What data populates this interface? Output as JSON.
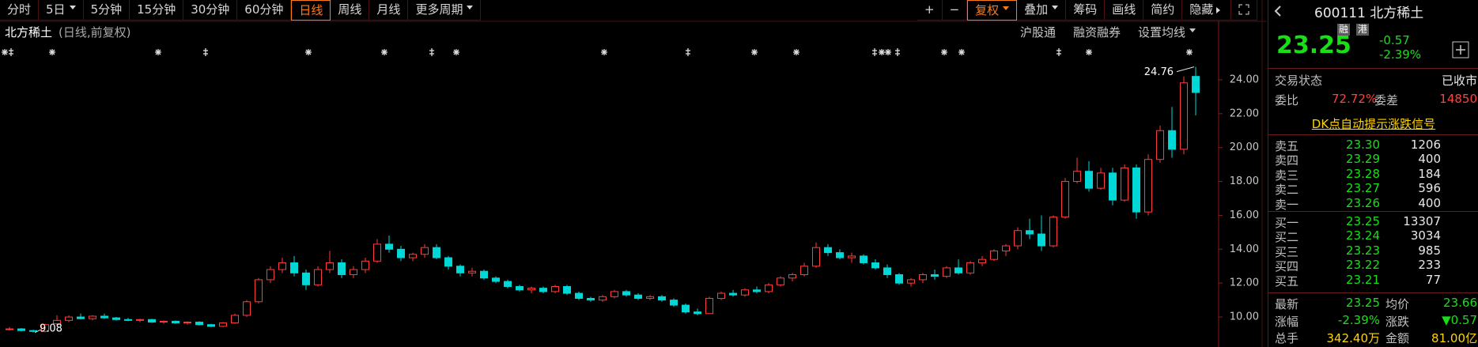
{
  "toolbar": {
    "periods": [
      "分时",
      "5日",
      "5分钟",
      "15分钟",
      "30分钟",
      "60分钟",
      "日线",
      "周线",
      "月线",
      "更多周期"
    ],
    "dropdown_periods": [
      "5日",
      "更多周期"
    ],
    "active": "日线",
    "tools": [
      "+",
      "−",
      "复权",
      "叠加",
      "筹码",
      "画线",
      "简约",
      "隐藏"
    ],
    "dropdown_tools": [
      "复权",
      "叠加"
    ],
    "active_tool": "复权"
  },
  "header": {
    "name": "北方稀土",
    "mode": "(日线,前复权)",
    "links": [
      "沪股通",
      "融资融券",
      "设置均线"
    ]
  },
  "chart_data": {
    "type": "candlestick",
    "up_color": "#ff3c3c",
    "down_color": "#00d7d7",
    "grid": false,
    "ylim": [
      8.23,
      27.03
    ],
    "yticks": [
      {
        "value": 10,
        "label": "10.00"
      },
      {
        "value": 12,
        "label": "12.00"
      },
      {
        "value": 14,
        "label": "14.00"
      },
      {
        "value": 16,
        "label": "16.00"
      },
      {
        "value": 18,
        "label": "18.00"
      },
      {
        "value": 20,
        "label": "20.00"
      },
      {
        "value": 22,
        "label": "22.00"
      },
      {
        "value": 24,
        "label": "24.00"
      }
    ],
    "open": [
      9.3,
      9.3,
      9.2,
      9.15,
      9.6,
      9.8,
      10.0,
      9.9,
      10.05,
      9.95,
      9.85,
      9.8,
      9.85,
      9.7,
      9.75,
      9.65,
      9.7,
      9.55,
      9.45,
      9.65,
      10.1,
      10.9,
      12.2,
      12.8,
      13.2,
      12.6,
      11.9,
      12.8,
      13.2,
      12.5,
      12.8,
      13.3,
      14.3,
      14.0,
      13.5,
      13.7,
      14.1,
      13.5,
      13.0,
      12.6,
      12.7,
      12.3,
      12.1,
      11.8,
      11.6,
      11.7,
      11.5,
      11.8,
      11.4,
      11.1,
      11.0,
      11.2,
      11.5,
      11.3,
      11.1,
      11.2,
      11.0,
      10.7,
      10.3,
      10.2,
      11.1,
      11.4,
      11.3,
      11.6,
      11.5,
      11.9,
      12.3,
      12.5,
      13.0,
      14.1,
      13.8,
      13.5,
      13.6,
      13.2,
      12.9,
      12.5,
      12.0,
      12.2,
      12.5,
      12.4,
      12.9,
      12.6,
      13.2,
      13.4,
      13.9,
      14.2,
      15.1,
      14.9,
      14.2,
      15.9,
      18.0,
      18.6,
      17.6,
      18.5,
      16.9,
      18.8,
      16.2,
      19.3,
      21.0,
      19.9,
      24.2
    ],
    "high": [
      9.4,
      9.35,
      9.25,
      9.6,
      10.1,
      10.1,
      10.2,
      10.1,
      10.2,
      10.0,
      9.95,
      9.9,
      9.9,
      9.8,
      9.8,
      9.75,
      9.75,
      9.6,
      9.7,
      10.2,
      11.0,
      12.3,
      13.0,
      13.5,
      13.6,
      12.8,
      13.0,
      13.9,
      13.4,
      13.0,
      13.5,
      14.6,
      14.8,
      14.2,
      13.8,
      14.3,
      14.3,
      13.6,
      13.1,
      12.9,
      12.8,
      12.4,
      12.2,
      11.9,
      11.8,
      11.8,
      11.9,
      11.9,
      11.5,
      11.2,
      11.3,
      11.6,
      11.6,
      11.4,
      11.3,
      11.3,
      11.1,
      10.8,
      10.5,
      11.2,
      11.5,
      11.6,
      11.7,
      11.8,
      12.0,
      12.4,
      12.6,
      13.2,
      14.4,
      14.3,
      14.0,
      13.8,
      13.7,
      13.4,
      13.1,
      12.6,
      12.3,
      12.6,
      12.8,
      13.0,
      13.4,
      13.3,
      13.6,
      14.0,
      14.3,
      15.3,
      15.8,
      16.0,
      16.0,
      18.2,
      19.4,
      19.2,
      18.8,
      18.8,
      19.0,
      19.0,
      19.6,
      21.3,
      22.4,
      24.2,
      24.76
    ],
    "low": [
      9.2,
      9.15,
      9.08,
      9.1,
      9.5,
      9.7,
      9.85,
      9.8,
      9.9,
      9.8,
      9.75,
      9.7,
      9.65,
      9.6,
      9.6,
      9.55,
      9.5,
      9.4,
      9.4,
      9.6,
      10.0,
      10.8,
      12.0,
      12.6,
      12.4,
      11.6,
      11.8,
      12.6,
      12.3,
      12.3,
      12.6,
      13.2,
      13.8,
      13.3,
      13.3,
      13.5,
      13.4,
      12.8,
      12.4,
      12.4,
      12.2,
      12.0,
      11.7,
      11.5,
      11.4,
      11.4,
      11.4,
      11.3,
      11.0,
      10.9,
      10.9,
      11.1,
      11.2,
      11.0,
      11.0,
      10.9,
      10.6,
      10.2,
      10.1,
      10.2,
      11.0,
      11.2,
      11.2,
      11.4,
      11.4,
      11.8,
      12.1,
      12.4,
      12.9,
      13.6,
      13.4,
      13.2,
      13.1,
      12.8,
      12.3,
      11.9,
      11.8,
      12.0,
      12.2,
      12.3,
      12.5,
      12.5,
      13.0,
      13.3,
      13.6,
      14.0,
      14.6,
      13.9,
      14.1,
      15.8,
      17.9,
      17.4,
      17.5,
      16.6,
      16.8,
      15.8,
      16.0,
      19.1,
      19.4,
      19.6,
      21.9
    ],
    "close": [
      9.3,
      9.2,
      9.15,
      9.55,
      9.8,
      10.0,
      9.9,
      10.05,
      9.95,
      9.85,
      9.8,
      9.85,
      9.7,
      9.75,
      9.65,
      9.7,
      9.55,
      9.45,
      9.65,
      10.1,
      10.9,
      12.2,
      12.8,
      13.2,
      12.6,
      11.9,
      12.8,
      13.2,
      12.5,
      12.8,
      13.3,
      14.3,
      14.0,
      13.5,
      13.7,
      14.1,
      13.5,
      13.0,
      12.6,
      12.7,
      12.3,
      12.1,
      11.8,
      11.6,
      11.7,
      11.5,
      11.8,
      11.4,
      11.1,
      11.0,
      11.2,
      11.5,
      11.3,
      11.1,
      11.2,
      11.0,
      10.7,
      10.3,
      10.2,
      11.1,
      11.4,
      11.3,
      11.6,
      11.5,
      11.9,
      12.3,
      12.5,
      13.0,
      14.1,
      13.8,
      13.5,
      13.6,
      13.2,
      12.9,
      12.5,
      12.0,
      12.2,
      12.5,
      12.4,
      12.9,
      12.6,
      13.2,
      13.4,
      13.9,
      14.2,
      15.1,
      14.9,
      14.2,
      15.9,
      18.0,
      18.6,
      17.6,
      18.5,
      16.9,
      18.8,
      16.2,
      19.3,
      21.0,
      19.9,
      23.82,
      23.25
    ],
    "annotations": [
      {
        "value": 24.76
      },
      {
        "value": 9.08
      }
    ]
  },
  "quote": {
    "code": "600111",
    "name": "北方稀土",
    "tags": [
      "融",
      "港"
    ],
    "price": "23.25",
    "change": "-0.57",
    "change_pct": "-2.39%",
    "status_label": "交易状态",
    "status": "已收市",
    "ratio_label": "委比",
    "ratio": "72.72%",
    "diff_label": "委差",
    "diff": "14850",
    "signal": "DK点自动提示涨跌信号",
    "asks": [
      [
        "卖五",
        "23.30",
        "1206"
      ],
      [
        "卖四",
        "23.29",
        "400"
      ],
      [
        "卖三",
        "23.28",
        "184"
      ],
      [
        "卖二",
        "23.27",
        "596"
      ],
      [
        "卖一",
        "23.26",
        "400"
      ]
    ],
    "bids": [
      [
        "买一",
        "23.25",
        "13307"
      ],
      [
        "买二",
        "23.24",
        "3034"
      ],
      [
        "买三",
        "23.23",
        "985"
      ],
      [
        "买四",
        "23.22",
        "233"
      ],
      [
        "买五",
        "23.21",
        "77"
      ]
    ],
    "stats": [
      [
        "最新",
        "23.25",
        "均价",
        "23.66"
      ],
      [
        "涨幅",
        "-2.39%",
        "涨跌",
        "▼0.57"
      ],
      [
        "总手",
        "342.40万",
        "金额",
        "81.00亿"
      ]
    ]
  }
}
